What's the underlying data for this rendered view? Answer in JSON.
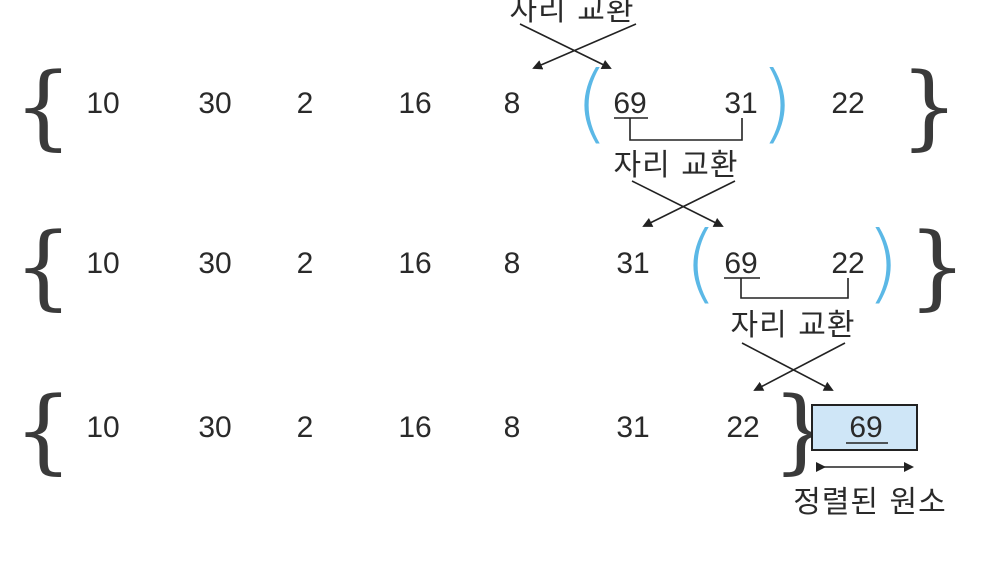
{
  "diagram": {
    "row1": {
      "values": [
        "10",
        "30",
        "2",
        "16",
        "8",
        "69",
        "31",
        "22"
      ]
    },
    "row2": {
      "values": [
        "10",
        "30",
        "2",
        "16",
        "8",
        "31",
        "69",
        "22"
      ]
    },
    "row3": {
      "values": [
        "10",
        "30",
        "2",
        "16",
        "8",
        "31",
        "22"
      ],
      "sorted_value": "69"
    },
    "labels": {
      "swap": "자리 교환",
      "sorted": "정렬된 원소"
    },
    "colors": {
      "paren": "#5bb8e6",
      "sorted_box_fill": "#cfe6f7",
      "line": "#222222"
    }
  }
}
